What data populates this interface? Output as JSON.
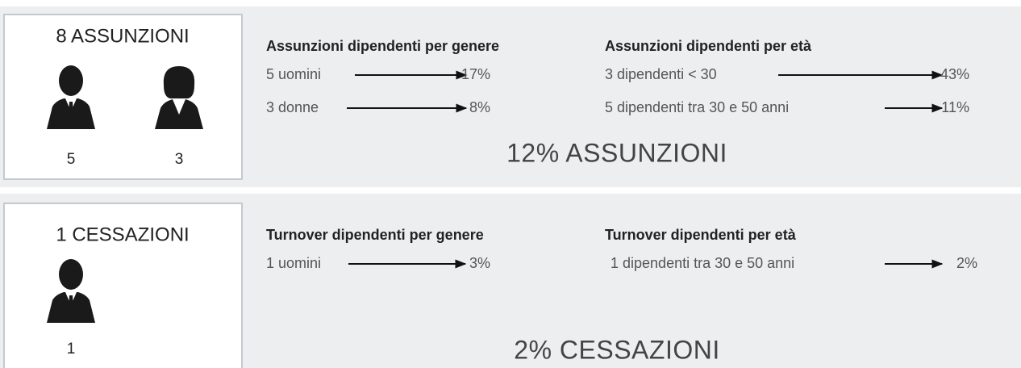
{
  "assunzioni": {
    "title": "8 ASSUNZIONI",
    "men": "5",
    "women": "3",
    "gender": {
      "heading": "Assunzioni dipendenti per genere",
      "rows": [
        {
          "label": "5 uomini",
          "value": "17%"
        },
        {
          "label": "3 donne",
          "value": "8%"
        }
      ]
    },
    "age": {
      "heading": "Assunzioni dipendenti per età",
      "rows": [
        {
          "label": "3 dipendenti < 30",
          "value": "43%"
        },
        {
          "label": "5 dipendenti tra 30 e 50 anni",
          "value": "11%"
        }
      ]
    },
    "summary": "12% ASSUNZIONI"
  },
  "cessazioni": {
    "title": "1 CESSAZIONI",
    "men": "1",
    "gender": {
      "heading": "Turnover dipendenti per genere",
      "rows": [
        {
          "label": "1 uomini",
          "value": "3%"
        }
      ]
    },
    "age": {
      "heading": "Turnover dipendenti per età",
      "rows": [
        {
          "label": "1 dipendenti tra 30 e 50 anni",
          "value": "2%"
        }
      ]
    },
    "summary": "2% CESSAZIONI"
  }
}
